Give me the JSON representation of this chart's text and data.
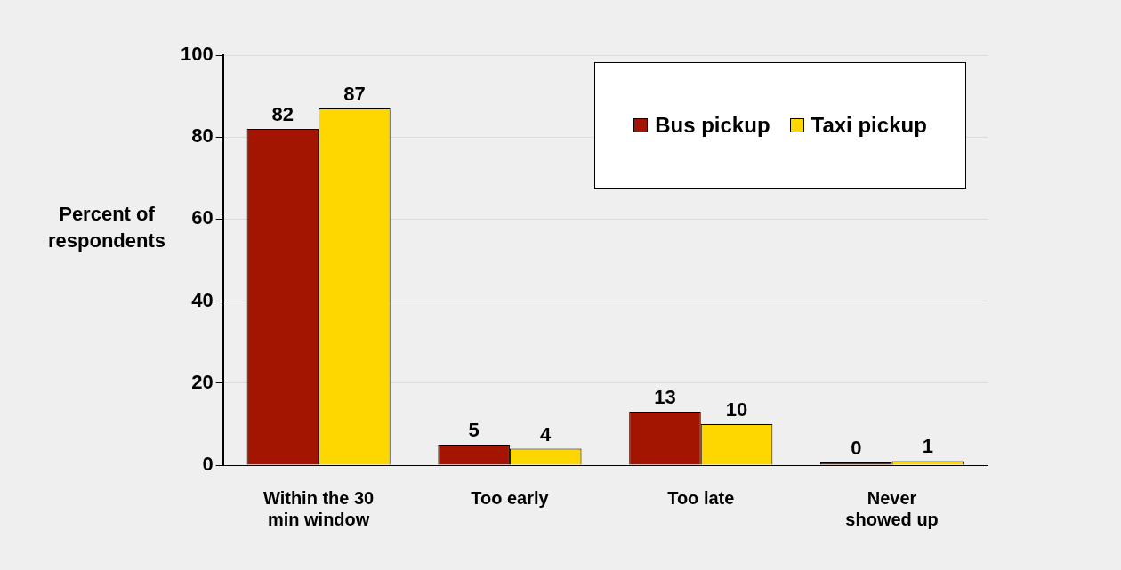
{
  "chart_data": {
    "type": "bar",
    "ylabel": "Percent of respondents",
    "categories": [
      "Within the 30 min window",
      "Too early",
      "Too late",
      "Never showed up"
    ],
    "series": [
      {
        "name": "Bus pickup",
        "color": "#a31500",
        "values": [
          82,
          5,
          13,
          0
        ]
      },
      {
        "name": "Taxi pickup",
        "color": "#ffd700",
        "values": [
          87,
          4,
          10,
          1
        ]
      }
    ],
    "ylim": [
      0,
      100
    ],
    "yticks": [
      0,
      20,
      40,
      60,
      80,
      100
    ],
    "grid": "y",
    "legend": "top right",
    "data_labels": true
  }
}
